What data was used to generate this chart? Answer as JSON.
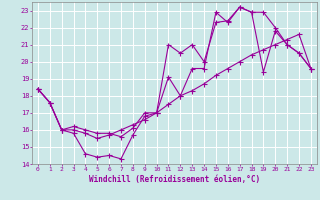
{
  "background_color": "#cce8e8",
  "grid_color": "#ffffff",
  "line_color": "#990099",
  "xlabel": "Windchill (Refroidissement éolien,°C)",
  "xlim": [
    -0.5,
    23.5
  ],
  "ylim": [
    14,
    23.5
  ],
  "yticks": [
    14,
    15,
    16,
    17,
    18,
    19,
    20,
    21,
    22,
    23
  ],
  "xticks": [
    0,
    1,
    2,
    3,
    4,
    5,
    6,
    7,
    8,
    9,
    10,
    11,
    12,
    13,
    14,
    15,
    16,
    17,
    18,
    19,
    20,
    21,
    22,
    23
  ],
  "line1_x": [
    0,
    1,
    2,
    3,
    4,
    5,
    6,
    7,
    8,
    9,
    10,
    11,
    12,
    13,
    14,
    15,
    16,
    17,
    18,
    19,
    20,
    21,
    22,
    23
  ],
  "line1_y": [
    18.4,
    17.6,
    16.0,
    15.8,
    14.6,
    14.4,
    14.5,
    14.3,
    15.7,
    16.8,
    17.0,
    19.1,
    18.0,
    19.6,
    19.6,
    22.9,
    22.3,
    23.2,
    22.9,
    19.4,
    21.8,
    21.0,
    20.5,
    19.6
  ],
  "line2_x": [
    0,
    1,
    2,
    3,
    4,
    5,
    6,
    7,
    8,
    9,
    10,
    11,
    12,
    13,
    14,
    15,
    16,
    17,
    18,
    19,
    20,
    21,
    22,
    23
  ],
  "line2_y": [
    18.4,
    17.6,
    16.0,
    16.0,
    15.8,
    15.5,
    15.7,
    16.0,
    16.3,
    16.6,
    17.0,
    17.5,
    18.0,
    18.3,
    18.7,
    19.2,
    19.6,
    20.0,
    20.4,
    20.7,
    21.0,
    21.3,
    21.6,
    19.6
  ],
  "line3_x": [
    0,
    1,
    2,
    3,
    4,
    5,
    6,
    7,
    8,
    9,
    10,
    11,
    12,
    13,
    14,
    15,
    16,
    17,
    18,
    19,
    20,
    21,
    22,
    23
  ],
  "line3_y": [
    18.4,
    17.6,
    16.0,
    16.2,
    16.0,
    15.8,
    15.8,
    15.6,
    16.1,
    17.0,
    17.0,
    21.0,
    20.5,
    21.0,
    20.0,
    22.3,
    22.4,
    23.2,
    22.9,
    22.9,
    22.0,
    21.0,
    20.5,
    19.6
  ]
}
